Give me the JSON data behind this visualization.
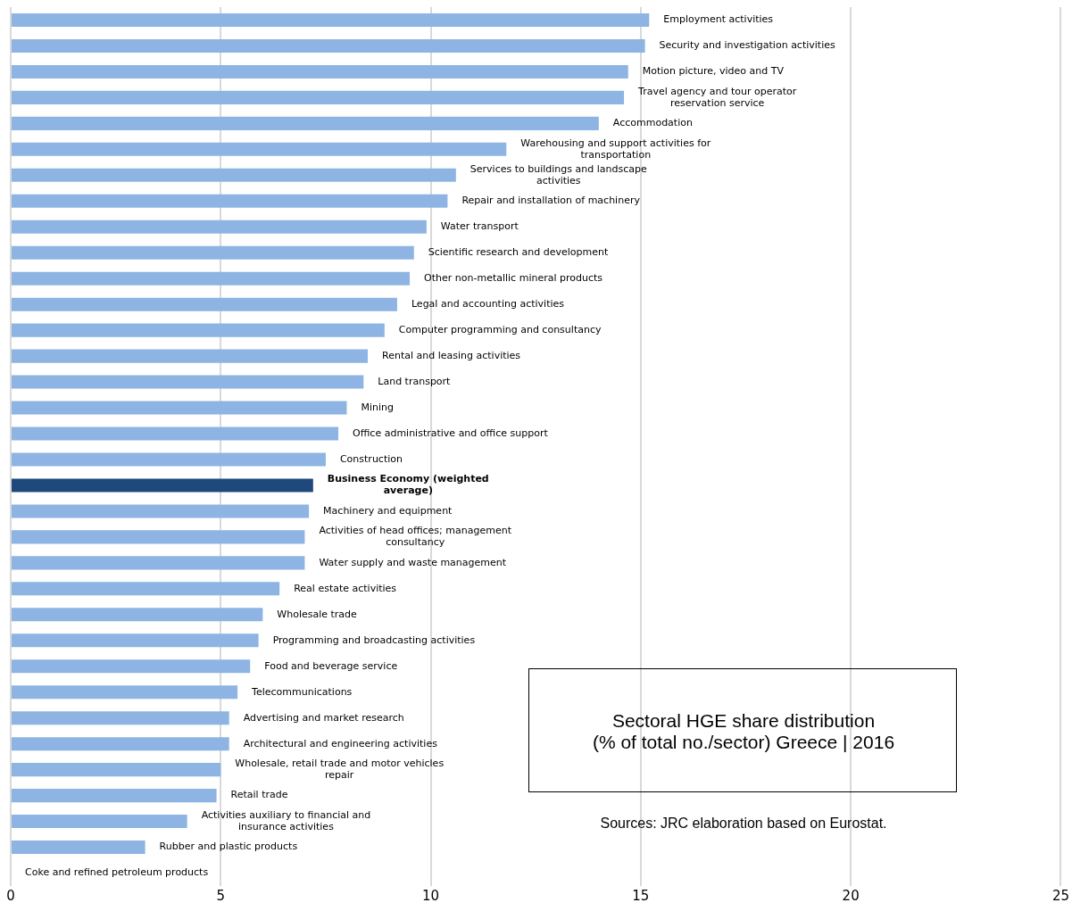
{
  "chart_data": {
    "type": "bar",
    "orientation": "horizontal",
    "title": "Sectoral HGE share distribution\n(% of total no./sector) Greece | 2016",
    "annotations": [
      "Sources: JRC elaboration based on Eurostat."
    ],
    "categories": [
      "Employment activities",
      "Security and investigation activities",
      "Motion picture, video and TV",
      "Travel agency and tour operator reservation service",
      "Accommodation",
      "Warehousing and support activities for transportation",
      "Services to buildings and landscape activities",
      "Repair and installation of machinery",
      "Water transport",
      "Scientific research and development",
      "Other non-metallic mineral products",
      "Legal and accounting activities",
      "Computer programming and consultancy",
      "Rental and leasing activities",
      "Land transport",
      "Mining",
      "Office administrative and office support",
      "Construction",
      "Business Economy (weighted average)",
      "Machinery and equipment",
      "Activities of head offices; management consultancy",
      "Water supply and waste management",
      "Real estate activities",
      "Wholesale trade",
      "Programming and broadcasting activities",
      "Food and beverage service",
      "Telecommunications",
      "Advertising and market research",
      "Architectural and engineering activities",
      "Wholesale, retail trade and motor vehicles repair",
      "Retail trade",
      "Activities auxiliary to financial and insurance activities",
      "Rubber and plastic products",
      "Coke and refined petroleum products"
    ],
    "values": [
      15.2,
      15.1,
      14.7,
      14.6,
      14.0,
      11.8,
      10.6,
      10.4,
      9.9,
      9.6,
      9.5,
      9.2,
      8.9,
      8.5,
      8.4,
      8.0,
      7.8,
      7.5,
      7.2,
      7.1,
      7.0,
      7.0,
      6.4,
      6.0,
      5.9,
      5.7,
      5.4,
      5.2,
      5.2,
      5.0,
      4.9,
      4.2,
      3.2,
      0
    ],
    "colors": [
      "#8db4e2",
      "#8db4e2",
      "#8db4e2",
      "#8db4e2",
      "#8db4e2",
      "#8db4e2",
      "#8db4e2",
      "#8db4e2",
      "#8db4e2",
      "#8db4e2",
      "#8db4e2",
      "#8db4e2",
      "#8db4e2",
      "#8db4e2",
      "#8db4e2",
      "#8db4e2",
      "#8db4e2",
      "#8db4e2",
      "#1f497d",
      "#8db4e2",
      "#8db4e2",
      "#8db4e2",
      "#8db4e2",
      "#8db4e2",
      "#8db4e2",
      "#8db4e2",
      "#8db4e2",
      "#8db4e2",
      "#8db4e2",
      "#8db4e2",
      "#8db4e2",
      "#8db4e2",
      "#8db4e2",
      "#8db4e2"
    ],
    "xlim": [
      0,
      25
    ],
    "xticks": [
      0,
      5,
      10,
      15,
      20,
      25
    ],
    "grid": "x",
    "legend": false,
    "tick_labels": "x"
  }
}
